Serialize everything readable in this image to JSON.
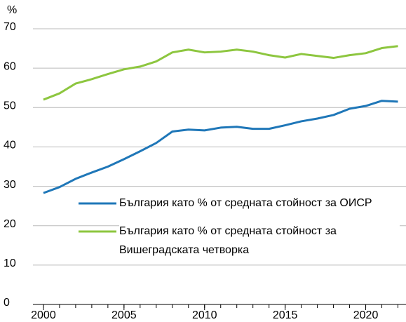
{
  "chart_data": {
    "type": "line",
    "y_label": "%",
    "x": [
      2000,
      2001,
      2002,
      2003,
      2004,
      2005,
      2006,
      2007,
      2008,
      2009,
      2010,
      2011,
      2012,
      2013,
      2014,
      2015,
      2016,
      2017,
      2018,
      2019,
      2020,
      2021,
      2022
    ],
    "series": [
      {
        "name": "България като % от средната стойност за ОИСР",
        "color": "#1f77b8",
        "values": [
          28.3,
          29.8,
          31.9,
          33.5,
          35,
          36.9,
          38.9,
          41,
          43.9,
          44.4,
          44.2,
          44.9,
          45.1,
          44.6,
          44.6,
          45.5,
          46.5,
          47.2,
          48.1,
          49.7,
          50.4,
          51.7,
          51.5
        ]
      },
      {
        "name": "България като % от средната стойност за Вишеградската четворка",
        "color": "#8dc63f",
        "values": [
          52,
          53.6,
          56.1,
          57.2,
          58.5,
          59.7,
          60.4,
          61.7,
          64,
          64.7,
          64,
          64.2,
          64.7,
          64.2,
          63.3,
          62.7,
          63.6,
          63.1,
          62.6,
          63.3,
          63.8,
          65.1,
          65.6
        ]
      }
    ],
    "xlim": [
      1999.35,
      2022.5
    ],
    "xticks": [
      2000,
      2005,
      2010,
      2015,
      2020
    ],
    "ylim": [
      0,
      70
    ],
    "yticks": [
      0,
      10,
      20,
      30,
      40,
      50,
      60,
      70
    ],
    "grid": true
  }
}
